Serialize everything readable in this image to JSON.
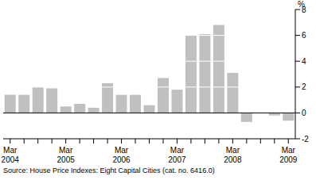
{
  "chart_data": {
    "type": "bar",
    "y_label": "%",
    "source": "Source: House Price Indexes: Eight Capital Cities (cat. no. 6416.0)",
    "categories": [
      "Mar 2004",
      null,
      null,
      null,
      "Mar 2005",
      null,
      null,
      null,
      "Mar 2006",
      null,
      null,
      null,
      "Mar 2007",
      null,
      null,
      null,
      "Mar 2008",
      null,
      null,
      null,
      "Mar 2009"
    ],
    "values": [
      1.4,
      1.4,
      2.0,
      1.9,
      0.5,
      0.7,
      0.4,
      2.3,
      1.4,
      1.4,
      0.6,
      2.7,
      1.8,
      6.0,
      6.1,
      6.8,
      3.1,
      -0.7,
      0,
      -0.2,
      -0.6
    ],
    "color": "#c0c0c0",
    "ylim": [
      -2,
      8
    ],
    "yticks": [
      -2,
      0,
      2,
      4,
      6,
      8
    ],
    "grid": true
  }
}
